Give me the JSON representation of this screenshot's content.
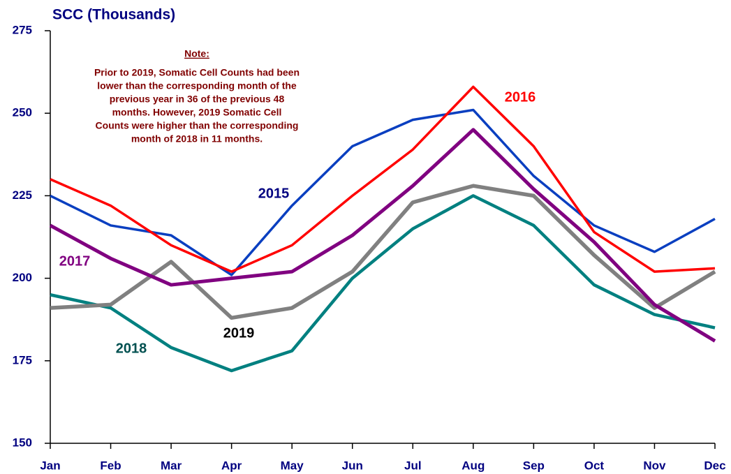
{
  "chart_data": {
    "type": "line",
    "title": "SCC (Thousands)",
    "note_title": "Note:",
    "note_lines": [
      "Prior to 2019, Somatic Cell Counts had been",
      "lower than the corresponding month of the",
      "previous year in 36 of the previous 48",
      "months.  However, 2019 Somatic Cell",
      "Counts were higher than the corresponding",
      "month of 2018 in 11 months."
    ],
    "categories": [
      "Jan",
      "Feb",
      "Mar",
      "Apr",
      "May",
      "Jun",
      "Jul",
      "Aug",
      "Sep",
      "Oct",
      "Nov",
      "Dec"
    ],
    "ylim": [
      150,
      275
    ],
    "yticks": [
      150,
      175,
      200,
      225,
      250,
      275
    ],
    "series": [
      {
        "name": "2015",
        "color": "#0a3fc0",
        "label_color": "#000080",
        "values": [
          225,
          216,
          213,
          201,
          222,
          240,
          248,
          251,
          231,
          216,
          208,
          218
        ]
      },
      {
        "name": "2016",
        "color": "#ff0000",
        "label_color": "#ff0000",
        "values": [
          230,
          222,
          210,
          202,
          210,
          225,
          239,
          258,
          240,
          214,
          202,
          203
        ]
      },
      {
        "name": "2017",
        "color": "#800080",
        "label_color": "#800080",
        "values": [
          216,
          206,
          198,
          200,
          202,
          213,
          228,
          245,
          227,
          211,
          192,
          181
        ]
      },
      {
        "name": "2018",
        "color": "#008080",
        "label_color": "#005050",
        "values": [
          195,
          191,
          179,
          172,
          178,
          200,
          215,
          225,
          216,
          198,
          189,
          185
        ]
      },
      {
        "name": "2019",
        "color": "#808080",
        "label_color": "#000000",
        "values": [
          191,
          192,
          205,
          188,
          191,
          202,
          223,
          228,
          225,
          207,
          191,
          202
        ]
      }
    ]
  }
}
